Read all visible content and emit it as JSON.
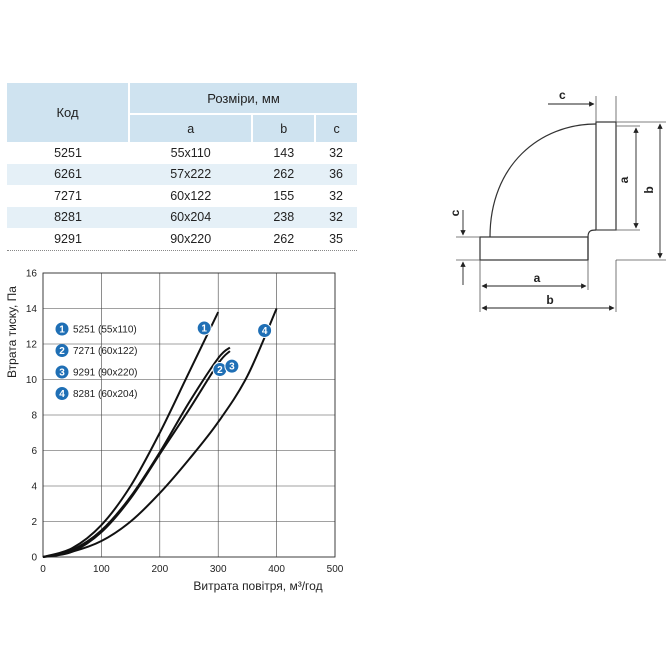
{
  "table": {
    "code_header": "Код",
    "dims_header": "Розміри, мм",
    "sub_headers": [
      "a",
      "b",
      "c"
    ],
    "rows": [
      {
        "code": "5251",
        "a": "55x110",
        "b": "143",
        "c": "32"
      },
      {
        "code": "6261",
        "a": "57x222",
        "b": "262",
        "c": "36"
      },
      {
        "code": "7271",
        "a": "60x122",
        "b": "155",
        "c": "32"
      },
      {
        "code": "8281",
        "a": "60x204",
        "b": "238",
        "c": "32"
      },
      {
        "code": "9291",
        "a": "90x220",
        "b": "262",
        "c": "35"
      }
    ]
  },
  "diagram": {
    "labels": {
      "c_top": "c",
      "a_right": "a",
      "b_right": "b",
      "c_left": "c",
      "a_bottom": "a",
      "b_bottom": "b"
    }
  },
  "chart_data": {
    "type": "line",
    "xlabel": "Витрата повітря, м³/год",
    "ylabel": "Втрата тиску, Па",
    "xlim": [
      0,
      500
    ],
    "ylim": [
      0,
      16
    ],
    "xticks": [
      "0",
      "100",
      "200",
      "300",
      "400",
      "500"
    ],
    "yticks": [
      "0",
      "2",
      "4",
      "6",
      "8",
      "10",
      "12",
      "14",
      "16"
    ],
    "grid": true,
    "legend_position": "top-left",
    "series": [
      {
        "badge": "1",
        "name": "5251 (55x110)",
        "x": [
          0,
          50,
          100,
          150,
          200,
          250,
          300
        ],
        "y": [
          0,
          0.5,
          1.8,
          4.0,
          7.0,
          10.4,
          13.8
        ]
      },
      {
        "badge": "2",
        "name": "7271 (60x122)",
        "x": [
          0,
          50,
          100,
          150,
          200,
          250,
          300,
          320
        ],
        "y": [
          0,
          0.4,
          1.5,
          3.4,
          5.9,
          8.7,
          11.2,
          11.8
        ]
      },
      {
        "badge": "3",
        "name": "9291 (90x220)",
        "x": [
          0,
          50,
          100,
          150,
          200,
          250,
          300,
          320
        ],
        "y": [
          0,
          0.3,
          1.4,
          3.3,
          5.8,
          8.3,
          10.9,
          11.6
        ]
      },
      {
        "badge": "4",
        "name": "8281 (60x204)",
        "x": [
          0,
          50,
          100,
          150,
          200,
          250,
          300,
          350,
          400
        ],
        "y": [
          0,
          0.3,
          0.9,
          2.0,
          3.6,
          5.5,
          7.6,
          10.2,
          14.0
        ]
      }
    ]
  }
}
